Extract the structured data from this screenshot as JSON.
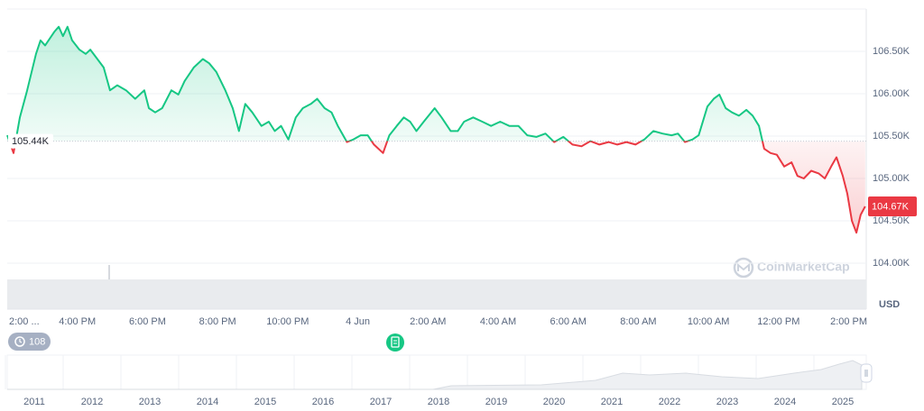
{
  "chart_data": {
    "type": "line",
    "x": [
      0,
      0.18,
      0.36,
      0.57,
      0.82,
      0.95,
      1.08,
      1.34,
      1.47,
      1.59,
      1.72,
      1.85,
      2.06,
      2.24,
      2.37,
      2.57,
      2.75,
      2.93,
      3.14,
      3.39,
      3.65,
      3.91,
      4.04,
      4.22,
      4.42,
      4.68,
      4.88,
      5.06,
      5.32,
      5.58,
      5.76,
      5.96,
      6.22,
      6.43,
      6.61,
      6.79,
      6.99,
      7.25,
      7.46,
      7.63,
      7.81,
      8.02,
      8.23,
      8.43,
      8.66,
      8.84,
      9.05,
      9.25,
      9.43,
      9.69,
      9.87,
      10.08,
      10.28,
      10.46,
      10.72,
      10.9,
      11.11,
      11.31,
      11.49,
      11.67,
      11.88,
      12.19,
      12.39,
      12.65,
      12.85,
      13.03,
      13.29,
      13.55,
      13.8,
      14.06,
      14.32,
      14.58,
      14.83,
      15.09,
      15.35,
      15.6,
      15.86,
      16.12,
      16.38,
      16.63,
      16.89,
      17.15,
      17.4,
      17.66,
      17.92,
      18.17,
      18.43,
      18.69,
      18.95,
      19.13,
      19.33,
      19.54,
      19.72,
      19.97,
      20.15,
      20.31,
      20.49,
      20.67,
      20.87,
      21.08,
      21.26,
      21.44,
      21.59,
      21.77,
      21.95,
      22.16,
      22.37,
      22.54,
      22.72,
      22.93,
      23.14,
      23.32,
      23.5,
      23.65,
      23.83,
      23.96,
      24.09,
      24.22,
      24.34,
      24.47
    ],
    "values": [
      105510,
      105300,
      105720,
      106040,
      106470,
      106630,
      106570,
      106730,
      106790,
      106680,
      106790,
      106630,
      106520,
      106470,
      106520,
      106410,
      106310,
      106040,
      106100,
      106040,
      105940,
      106040,
      105830,
      105780,
      105830,
      106040,
      105990,
      106150,
      106310,
      106410,
      106360,
      106260,
      106040,
      105830,
      105560,
      105880,
      105780,
      105620,
      105670,
      105560,
      105620,
      105460,
      105720,
      105830,
      105880,
      105940,
      105830,
      105780,
      105620,
      105430,
      105460,
      105510,
      105510,
      105400,
      105300,
      105510,
      105620,
      105720,
      105670,
      105560,
      105670,
      105830,
      105720,
      105560,
      105560,
      105670,
      105720,
      105670,
      105620,
      105670,
      105620,
      105620,
      105510,
      105490,
      105530,
      105430,
      105490,
      105400,
      105380,
      105440,
      105400,
      105430,
      105400,
      105430,
      105400,
      105460,
      105560,
      105530,
      105510,
      105530,
      105430,
      105460,
      105510,
      105850,
      105940,
      105990,
      105830,
      105780,
      105740,
      105810,
      105740,
      105620,
      105350,
      105300,
      105280,
      105140,
      105190,
      105030,
      105000,
      105090,
      105060,
      105000,
      105140,
      105250,
      105030,
      104820,
      104500,
      104360,
      104570,
      104670
    ],
    "colors": {
      "up": "#16c784",
      "down": "#ea3943"
    },
    "baseline": {
      "value": 105440,
      "label": "105.44K"
    },
    "last_price": {
      "value": 104670,
      "label": "104.67K"
    },
    "xlim": [
      0,
      24.5
    ],
    "xticks": [
      {
        "value": 0,
        "label": "2:00 ..."
      },
      {
        "value": 2,
        "label": "4:00 PM"
      },
      {
        "value": 4,
        "label": "6:00 PM"
      },
      {
        "value": 6,
        "label": "8:00 PM"
      },
      {
        "value": 8,
        "label": "10:00 PM"
      },
      {
        "value": 10,
        "label": "4 Jun"
      },
      {
        "value": 12,
        "label": "2:00 AM"
      },
      {
        "value": 14,
        "label": "4:00 AM"
      },
      {
        "value": 16,
        "label": "6:00 AM"
      },
      {
        "value": 18,
        "label": "8:00 AM"
      },
      {
        "value": 20,
        "label": "10:00 AM"
      },
      {
        "value": 22,
        "label": "12:00 PM"
      },
      {
        "value": 24,
        "label": "2:00 PM"
      }
    ],
    "ylim": [
      104000,
      107000
    ],
    "yticks": [
      {
        "value": 104000,
        "label": "104.00K"
      },
      {
        "value": 104500,
        "label": "104.50K"
      },
      {
        "value": 105000,
        "label": "105.00K"
      },
      {
        "value": 105500,
        "label": "105.50K"
      },
      {
        "value": 106000,
        "label": "106.00K"
      },
      {
        "value": 106500,
        "label": "106.50K"
      }
    ],
    "grid": true,
    "unit": "USD",
    "watermark": "CoinMarketCap",
    "badge": "108",
    "navigator_labels": [
      "2011",
      "2012",
      "2013",
      "2014",
      "2015",
      "2016",
      "2017",
      "2018",
      "2019",
      "2020",
      "2021",
      "2022",
      "2023",
      "2024",
      "2025"
    ]
  }
}
